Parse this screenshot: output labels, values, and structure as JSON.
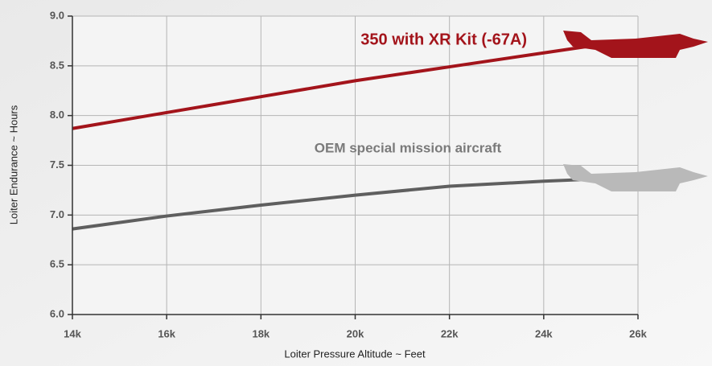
{
  "chart_data": {
    "type": "line",
    "x_label": "Loiter Pressure Altitude ~ Feet",
    "y_label": "Loiter Endurance ~ Hours",
    "xlim": [
      14000,
      26000
    ],
    "xticks": [
      {
        "value": 14000,
        "label": "14k"
      },
      {
        "value": 16000,
        "label": "16k"
      },
      {
        "value": 18000,
        "label": "18k"
      },
      {
        "value": 20000,
        "label": "20k"
      },
      {
        "value": 22000,
        "label": "22k"
      },
      {
        "value": 24000,
        "label": "24k"
      },
      {
        "value": 26000,
        "label": "26k"
      }
    ],
    "ylim": [
      6,
      9
    ],
    "yticks": [
      {
        "value": 6,
        "label": "6.0"
      },
      6.5,
      {
        "value": 7,
        "label": "7.0"
      },
      7.5,
      {
        "value": 8,
        "label": "8.0"
      },
      8.5,
      {
        "value": 9,
        "label": "9.0"
      }
    ],
    "grid": true,
    "x": [
      14000,
      16000,
      18000,
      20000,
      22000,
      24000,
      25000
    ],
    "series": [
      {
        "name": "350 with XR Kit (-67A)",
        "color": "#a3141b",
        "values": [
          7.87,
          8.03,
          8.19,
          8.35,
          8.49,
          8.63,
          8.7
        ]
      },
      {
        "name": "OEM special mission aircraft",
        "color": "#5f5f5f",
        "values": [
          6.86,
          6.99,
          7.1,
          7.2,
          7.29,
          7.34,
          7.36
        ]
      }
    ]
  }
}
